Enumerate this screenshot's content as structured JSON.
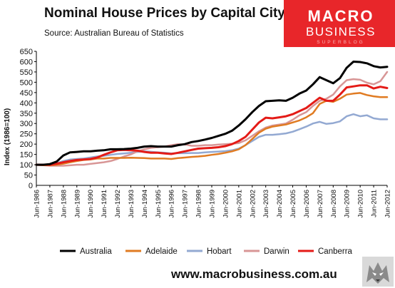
{
  "header": {
    "title": "Nominal House Prices by Capital City",
    "source": "Source: Australian Bureau of Statistics"
  },
  "logo": {
    "line1": "MACRO",
    "line2": "BUSINESS",
    "line3": "SUPERBLOG",
    "color": "#e8262a"
  },
  "footer": {
    "website": "www.macrobusiness.com.au"
  },
  "chart_data": {
    "type": "line",
    "title": "Nominal House Prices by Capital City",
    "ylabel": "Index (1986=100)",
    "xlabel": "",
    "ylim": [
      0,
      650
    ],
    "yticks": [
      0,
      50,
      100,
      150,
      200,
      250,
      300,
      350,
      400,
      450,
      500,
      550,
      600,
      650
    ],
    "xticks": [
      "Jun-1986",
      "Jun-1987",
      "Jun-1988",
      "Jun-1989",
      "Jun-1990",
      "Jun-1991",
      "Jun-1992",
      "Jun-1993",
      "Jun-1994",
      "Jun-1995",
      "Jun-1996",
      "Jun-1997",
      "Jun-1998",
      "Jun-1999",
      "Jun-2000",
      "Jun-2001",
      "Jun-2002",
      "Jun-2003",
      "Jun-2004",
      "Jun-2005",
      "Jun-2006",
      "Jun-2007",
      "Jun-2008",
      "Jun-2009",
      "Jun-2010",
      "Jun-2011",
      "Jun-2012"
    ],
    "grid": false,
    "legend_position": "bottom",
    "x": [
      1986.5,
      1987.0,
      1987.5,
      1988.0,
      1988.5,
      1989.0,
      1989.5,
      1990.0,
      1990.5,
      1991.0,
      1991.5,
      1992.0,
      1992.5,
      1993.0,
      1993.5,
      1994.0,
      1994.5,
      1995.0,
      1995.5,
      1996.0,
      1996.5,
      1997.0,
      1997.5,
      1998.0,
      1998.5,
      1999.0,
      1999.5,
      2000.0,
      2000.5,
      2001.0,
      2001.5,
      2002.0,
      2002.5,
      2003.0,
      2003.5,
      2004.0,
      2004.5,
      2005.0,
      2005.5,
      2006.0,
      2006.5,
      2007.0,
      2007.5,
      2008.0,
      2008.5,
      2009.0,
      2009.5,
      2010.0,
      2010.5,
      2011.0,
      2011.5,
      2012.0,
      2012.5
    ],
    "series": [
      {
        "name": "Australia",
        "color": "#000000",
        "width": 3,
        "values": [
          100,
          100,
          103,
          115,
          145,
          160,
          162,
          165,
          165,
          168,
          170,
          175,
          175,
          176,
          178,
          182,
          188,
          190,
          188,
          188,
          188,
          195,
          200,
          210,
          215,
          222,
          230,
          240,
          250,
          265,
          290,
          320,
          355,
          385,
          408,
          410,
          412,
          410,
          425,
          445,
          460,
          490,
          525,
          510,
          495,
          520,
          570,
          600,
          598,
          592,
          578,
          572,
          575
        ]
      },
      {
        "name": "Adelaide",
        "color": "#e07b22",
        "width": 2.5,
        "values": [
          100,
          98,
          98,
          100,
          105,
          112,
          118,
          123,
          125,
          130,
          130,
          133,
          133,
          133,
          134,
          133,
          132,
          130,
          130,
          130,
          128,
          132,
          135,
          138,
          140,
          143,
          148,
          152,
          158,
          165,
          175,
          195,
          225,
          255,
          275,
          285,
          290,
          295,
          305,
          315,
          330,
          350,
          395,
          410,
          405,
          420,
          440,
          445,
          448,
          438,
          432,
          428,
          428
        ]
      },
      {
        "name": "Hobart",
        "color": "#93a9d2",
        "width": 2.5,
        "values": [
          100,
          100,
          102,
          108,
          118,
          125,
          128,
          130,
          135,
          140,
          143,
          148,
          152,
          155,
          158,
          162,
          165,
          163,
          160,
          158,
          155,
          156,
          156,
          157,
          157,
          160,
          162,
          164,
          166,
          170,
          178,
          195,
          215,
          235,
          245,
          245,
          248,
          252,
          260,
          272,
          285,
          300,
          308,
          298,
          302,
          310,
          335,
          345,
          335,
          340,
          325,
          320,
          320
        ]
      },
      {
        "name": "Darwin",
        "color": "#d89696",
        "width": 2.5,
        "values": [
          100,
          98,
          95,
          95,
          95,
          97,
          100,
          100,
          104,
          108,
          112,
          118,
          128,
          140,
          150,
          165,
          175,
          182,
          185,
          188,
          195,
          200,
          198,
          192,
          192,
          195,
          195,
          198,
          200,
          202,
          205,
          218,
          240,
          262,
          280,
          290,
          295,
          300,
          318,
          340,
          355,
          385,
          410,
          420,
          440,
          480,
          510,
          515,
          512,
          498,
          490,
          505,
          550
        ]
      },
      {
        "name": "Canberra",
        "color": "#e41b17",
        "width": 3,
        "values": [
          100,
          100,
          100,
          105,
          112,
          118,
          123,
          125,
          128,
          135,
          148,
          160,
          170,
          172,
          170,
          168,
          162,
          158,
          158,
          155,
          152,
          158,
          165,
          172,
          178,
          180,
          182,
          185,
          190,
          200,
          215,
          235,
          270,
          305,
          328,
          325,
          330,
          335,
          345,
          360,
          375,
          400,
          425,
          410,
          410,
          440,
          475,
          480,
          485,
          485,
          470,
          478,
          472
        ]
      }
    ]
  }
}
